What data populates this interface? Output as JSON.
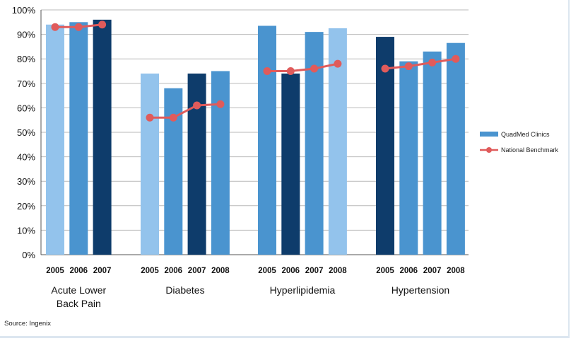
{
  "chart_data": {
    "type": "bar",
    "ylim": [
      0,
      100
    ],
    "yticks": [
      "0%",
      "10%",
      "20%",
      "30%",
      "40%",
      "50%",
      "60%",
      "70%",
      "80%",
      "90%",
      "100%"
    ],
    "grid": true,
    "legend_position": "right",
    "legend": {
      "bars": "QuadMed Clinics",
      "line": "National Benchmark"
    },
    "source": "Source:  Ingenix",
    "colors": {
      "light": "#93c3ec",
      "medium": "#4a94cf",
      "dark": "#0e3c6b",
      "line": "#e05b5b",
      "legend_bar": "#4a94cf",
      "grid": "#b9b9b9"
    },
    "groups": [
      {
        "label_lines": [
          "Acute Lower",
          "Back Pain"
        ],
        "bars": [
          {
            "year": "2005",
            "value": 94,
            "shade": "light"
          },
          {
            "year": "2006",
            "value": 95,
            "shade": "medium"
          },
          {
            "year": "2007",
            "value": 96,
            "shade": "dark"
          }
        ],
        "benchmark": [
          93,
          93,
          94
        ]
      },
      {
        "label_lines": [
          "Diabetes"
        ],
        "bars": [
          {
            "year": "2005",
            "value": 74,
            "shade": "light"
          },
          {
            "year": "2006",
            "value": 68,
            "shade": "medium"
          },
          {
            "year": "2007",
            "value": 74,
            "shade": "dark"
          },
          {
            "year": "2008",
            "value": 75,
            "shade": "medium"
          }
        ],
        "benchmark": [
          56,
          56,
          61,
          61.5
        ]
      },
      {
        "label_lines": [
          "Hyperlipidemia"
        ],
        "bars": [
          {
            "year": "2005",
            "value": 93.5,
            "shade": "medium"
          },
          {
            "year": "2006",
            "value": 74,
            "shade": "dark"
          },
          {
            "year": "2007",
            "value": 91,
            "shade": "medium"
          },
          {
            "year": "2008",
            "value": 92.5,
            "shade": "light"
          }
        ],
        "benchmark": [
          75,
          75,
          76,
          78
        ]
      },
      {
        "label_lines": [
          "Hypertension"
        ],
        "bars": [
          {
            "year": "2005",
            "value": 89,
            "shade": "dark"
          },
          {
            "year": "2006",
            "value": 79,
            "shade": "medium"
          },
          {
            "year": "2007",
            "value": 83,
            "shade": "medium"
          },
          {
            "year": "2008",
            "value": 86.5,
            "shade": "medium"
          }
        ],
        "benchmark": [
          76,
          77,
          78.5,
          80
        ]
      }
    ]
  }
}
